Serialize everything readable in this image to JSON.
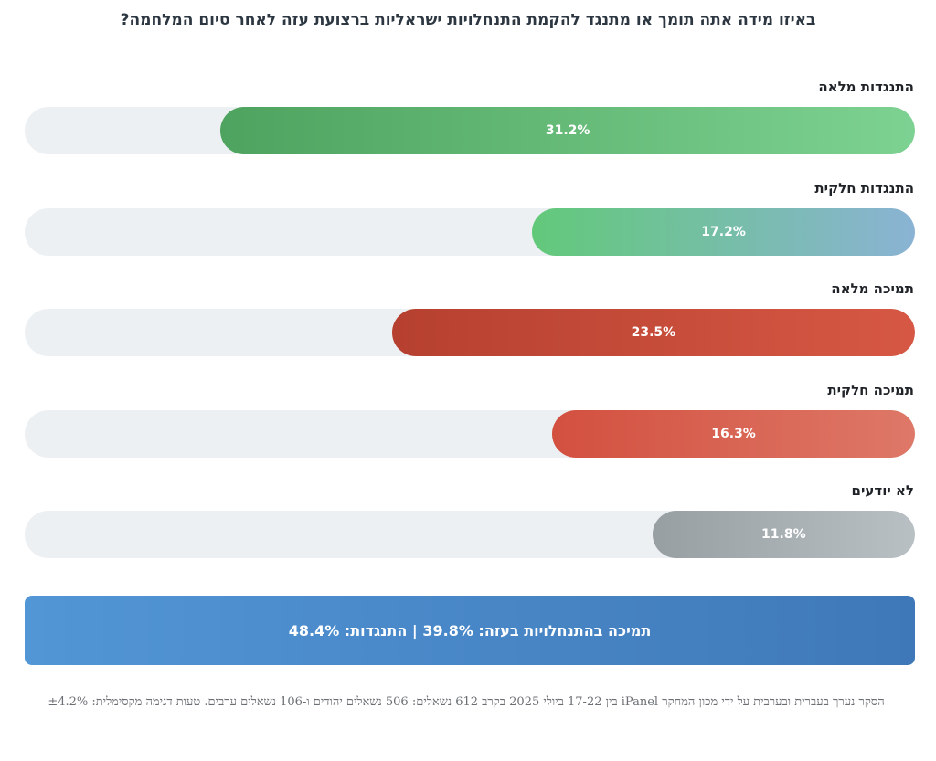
{
  "chart_data": {
    "type": "bar",
    "orientation": "horizontal",
    "title": "באיזו מידה אתה תומך או מתנגד להקמת התנחלויות ישראליות ברצועת עזה לאחר סיום המלחמה?",
    "categories": [
      "התנגדות מלאה",
      "התנגדות חלקית",
      "תמיכה מלאה",
      "תמיכה חלקית",
      "לא יודעים"
    ],
    "values": [
      31.2,
      17.2,
      23.5,
      16.3,
      11.8
    ],
    "value_labels": [
      "31.2%",
      "17.2%",
      "23.5%",
      "16.3%",
      "11.8%"
    ],
    "xlim": [
      0,
      40
    ],
    "colors": [
      [
        "#4ea35f",
        "#7dd292"
      ],
      [
        "#62c97a",
        "#8ab3d4"
      ],
      [
        "#b6402f",
        "#d65844"
      ],
      [
        "#d3503f",
        "#de7868"
      ],
      [
        "#979fa2",
        "#b8c0c4"
      ]
    ],
    "track_color": "#edf0f2",
    "grid": false,
    "legend": "none"
  },
  "summary": {
    "text": "תמיכה בהתנחלויות בעזה: 39.8% | התנגדות: 48.4%"
  },
  "footnote": {
    "text": "הסקר נערך בעברית ובערבית על ידי מכון המחקר iPanel בין 17-22 ביולי 2025 בקרב 612 נשאלים: 506 נשאלים יהודים ו-106 נשאלים ערבים. טעות דגימה מקסימלית: ±4.2%"
  }
}
